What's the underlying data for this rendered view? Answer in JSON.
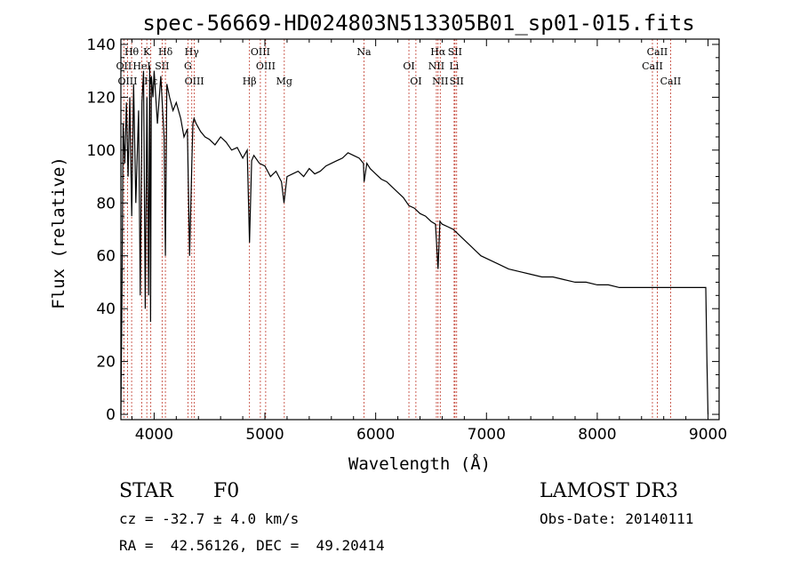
{
  "chart_data": {
    "type": "line",
    "title": "spec-56669-HD024803N513305B01_sp01-015.fits",
    "xlabel": "Wavelength (Å)",
    "ylabel": "Flux (relative)",
    "xlim": [
      3700,
      9100
    ],
    "ylim": [
      -2,
      142
    ],
    "x_ticks": [
      4000,
      5000,
      6000,
      7000,
      8000,
      9000
    ],
    "x_tick_labels": [
      "4000",
      "5000",
      "6000",
      "7000",
      "8000",
      "9000"
    ],
    "y_ticks": [
      0,
      20,
      40,
      60,
      80,
      100,
      120,
      140
    ],
    "y_tick_labels": [
      "0",
      "20",
      "40",
      "60",
      "80",
      "100",
      "120",
      "140"
    ],
    "series": [
      {
        "name": "spectrum",
        "color": "#000000",
        "x": [
          3700,
          3710,
          3720,
          3735,
          3750,
          3765,
          3780,
          3798,
          3815,
          3835,
          3860,
          3875,
          3890,
          3905,
          3920,
          3935,
          3950,
          3960,
          3968,
          3975,
          3990,
          4000,
          4030,
          4060,
          4090,
          4102,
          4115,
          4140,
          4170,
          4200,
          4240,
          4270,
          4300,
          4320,
          4340,
          4350,
          4360,
          4380,
          4420,
          4460,
          4500,
          4550,
          4600,
          4650,
          4700,
          4750,
          4800,
          4840,
          4861,
          4880,
          4900,
          4950,
          5000,
          5050,
          5100,
          5150,
          5172,
          5200,
          5250,
          5300,
          5350,
          5400,
          5450,
          5500,
          5550,
          5600,
          5650,
          5700,
          5750,
          5800,
          5850,
          5890,
          5895,
          5920,
          5950,
          6000,
          6050,
          6100,
          6150,
          6200,
          6250,
          6300,
          6350,
          6400,
          6450,
          6500,
          6540,
          6563,
          6580,
          6600,
          6650,
          6700,
          6750,
          6800,
          6850,
          6900,
          6950,
          7000,
          7100,
          7200,
          7300,
          7400,
          7500,
          7600,
          7700,
          7800,
          7900,
          8000,
          8100,
          8200,
          8300,
          8400,
          8500,
          8600,
          8700,
          8800,
          8900,
          8980,
          8990,
          9000
        ],
        "values": [
          0,
          45,
          110,
          95,
          118,
          90,
          120,
          75,
          125,
          80,
          115,
          45,
          118,
          130,
          40,
          120,
          45,
          132,
          35,
          128,
          120,
          130,
          110,
          128,
          105,
          60,
          125,
          120,
          115,
          118,
          112,
          105,
          108,
          60,
          95,
          110,
          112,
          110,
          107,
          105,
          104,
          102,
          105,
          103,
          100,
          101,
          97,
          100,
          65,
          96,
          98,
          95,
          94,
          90,
          92,
          88,
          80,
          90,
          91,
          92,
          90,
          93,
          91,
          92,
          94,
          95,
          96,
          97,
          99,
          98,
          97,
          95,
          88,
          95,
          93,
          91,
          89,
          88,
          86,
          84,
          82,
          79,
          78,
          76,
          75,
          73,
          72,
          55,
          73,
          72,
          71,
          70,
          68,
          66,
          64,
          62,
          60,
          59,
          57,
          55,
          54,
          53,
          52,
          52,
          51,
          50,
          50,
          49,
          49,
          48,
          48,
          48,
          48,
          48,
          48,
          48,
          48,
          48,
          20,
          0
        ]
      }
    ],
    "line_markers": [
      {
        "label": "Hθ",
        "x": 3797
      },
      {
        "label": "OII",
        "x": 3727
      },
      {
        "label": "OIII",
        "x": 3760
      },
      {
        "label": "K",
        "x": 3934
      },
      {
        "label": "HeI",
        "x": 3889
      },
      {
        "label": "Hε",
        "x": 3970
      },
      {
        "label": "Hδ",
        "x": 4102
      },
      {
        "label": "SII",
        "x": 4072
      },
      {
        "label": "OIII",
        "x": 4363
      },
      {
        "label": "Hγ",
        "x": 4340
      },
      {
        "label": "G",
        "x": 4305
      },
      {
        "label": "Hβ",
        "x": 4861
      },
      {
        "label": "OIII",
        "x": 4959
      },
      {
        "label": "OIII",
        "x": 5007
      },
      {
        "label": "Mg",
        "x": 5175
      },
      {
        "label": "Na",
        "x": 5894
      },
      {
        "label": "OI",
        "x": 6300
      },
      {
        "label": "OI",
        "x": 6363
      },
      {
        "label": "Hα",
        "x": 6563
      },
      {
        "label": "NII",
        "x": 6548
      },
      {
        "label": "NII",
        "x": 6583
      },
      {
        "label": "SII",
        "x": 6716
      },
      {
        "label": "Li",
        "x": 6708
      },
      {
        "label": "SII",
        "x": 6731
      },
      {
        "label": "CaII",
        "x": 8542
      },
      {
        "label": "CaII",
        "x": 8498
      },
      {
        "label": "CaII",
        "x": 8662
      }
    ]
  },
  "info": {
    "class_label": "STAR",
    "subclass": "F0",
    "survey": "LAMOST DR3",
    "velocity": "cz = -32.7 ± 4.0 km/s",
    "obs_date": "Obs-Date: 20140111",
    "coords": "RA =  42.56126, DEC =  49.20414"
  }
}
